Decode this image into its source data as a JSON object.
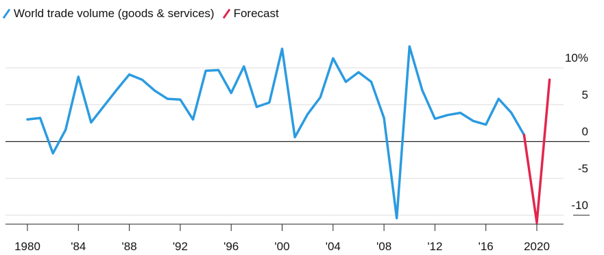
{
  "chart_data": {
    "type": "line",
    "x": [
      1980,
      1981,
      1982,
      1983,
      1984,
      1985,
      1986,
      1987,
      1988,
      1989,
      1990,
      1991,
      1992,
      1993,
      1994,
      1995,
      1996,
      1997,
      1998,
      1999,
      2000,
      2001,
      2002,
      2003,
      2004,
      2005,
      2006,
      2007,
      2008,
      2009,
      2010,
      2011,
      2012,
      2013,
      2014,
      2015,
      2016,
      2017,
      2018,
      2019,
      2020,
      2021
    ],
    "series": [
      {
        "name": "World trade volume (goods & services)",
        "color": "#2b9be0",
        "x": [
          1980,
          1981,
          1982,
          1983,
          1984,
          1985,
          1986,
          1987,
          1988,
          1989,
          1990,
          1991,
          1992,
          1993,
          1994,
          1995,
          1996,
          1997,
          1998,
          1999,
          2000,
          2001,
          2002,
          2003,
          2004,
          2005,
          2006,
          2007,
          2008,
          2009,
          2010,
          2011,
          2012,
          2013,
          2014,
          2015,
          2016,
          2017,
          2018,
          2019
        ],
        "values": [
          3.0,
          3.2,
          -1.6,
          1.6,
          8.8,
          2.6,
          4.8,
          7.0,
          9.1,
          8.4,
          6.9,
          5.8,
          5.7,
          3.0,
          9.6,
          9.7,
          6.6,
          10.2,
          4.7,
          5.3,
          12.6,
          0.6,
          3.7,
          6.0,
          11.3,
          8.1,
          9.4,
          8.1,
          3.2,
          -10.4,
          12.9,
          7.0,
          3.1,
          3.6,
          3.9,
          2.8,
          2.3,
          5.8,
          3.9,
          0.9
        ]
      },
      {
        "name": "Forecast",
        "color": "#e2264d",
        "x": [
          2019,
          2020,
          2021
        ],
        "values": [
          0.9,
          -11.0,
          8.4
        ]
      }
    ],
    "xticks": [
      {
        "value": 1980,
        "label": "1980"
      },
      {
        "value": 1984,
        "label": "'84"
      },
      {
        "value": 1988,
        "label": "'88"
      },
      {
        "value": 1992,
        "label": "'92"
      },
      {
        "value": 1996,
        "label": "'96"
      },
      {
        "value": 2000,
        "label": "'00"
      },
      {
        "value": 2004,
        "label": "'04"
      },
      {
        "value": 2008,
        "label": "'08"
      },
      {
        "value": 2012,
        "label": "'12"
      },
      {
        "value": 2016,
        "label": "'16"
      },
      {
        "value": 2020,
        "label": "2020"
      }
    ],
    "yticks": [
      {
        "value": 10,
        "label": "10%"
      },
      {
        "value": 5,
        "label": "5"
      },
      {
        "value": 0,
        "label": "0"
      },
      {
        "value": -5,
        "label": "-5"
      },
      {
        "value": -10,
        "label": "-10"
      }
    ],
    "xlim": [
      1979.5,
      2021.5
    ],
    "ylim": [
      -11.5,
      14
    ],
    "grid": true,
    "legend_position": "top-left",
    "title": "",
    "xlabel": "",
    "ylabel": ""
  }
}
